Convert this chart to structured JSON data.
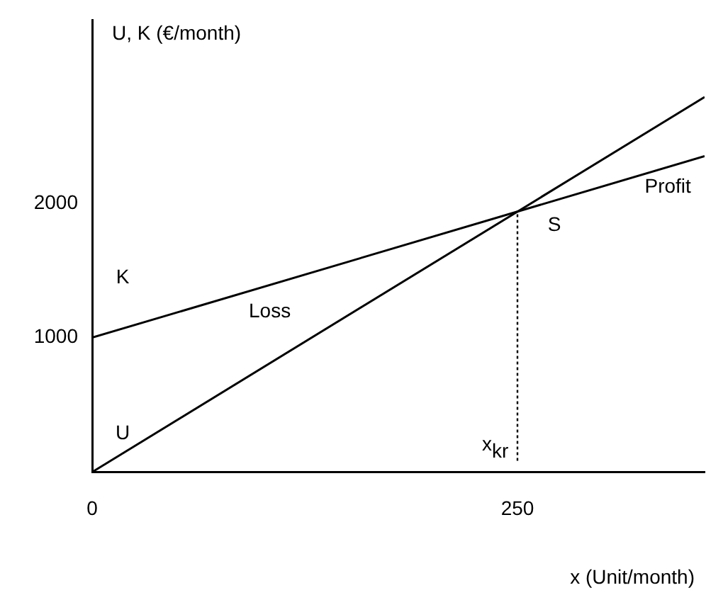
{
  "chart_data": {
    "type": "line",
    "xlabel": "x (Unit/month)",
    "ylabel": "U, K (€/month)",
    "x": [
      0,
      360
    ],
    "series": [
      {
        "name": "U",
        "color": "#000000",
        "values": [
          0,
          2790
        ]
      },
      {
        "name": "K",
        "color": "#000000",
        "values": [
          1000,
          2350
        ]
      }
    ],
    "xlim": [
      0,
      360
    ],
    "ylim": [
      0,
      3360
    ],
    "xticks": [
      0,
      250
    ],
    "yticks": [
      1000,
      2000
    ],
    "grid": false,
    "legend": false,
    "marker": "none",
    "line_style": "solid",
    "ref_lines": [
      {
        "axis": "x",
        "value": 250,
        "label": "x$_{kr}$",
        "line_style": "dotted",
        "color": "#000000"
      }
    ],
    "annotations": [
      {
        "text": "S",
        "x": 250,
        "y": 1938
      },
      "Loss",
      "Profit"
    ]
  }
}
